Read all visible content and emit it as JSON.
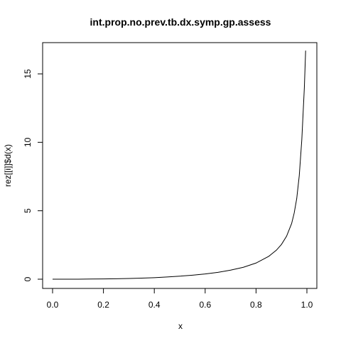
{
  "chart_data": {
    "type": "line",
    "title": "int.prop.no.prev.tb.dx.symp.gp.assess",
    "xlabel": "x",
    "ylabel": "rez[[i]]$d(x)",
    "xlim": [
      0,
      1
    ],
    "ylim": [
      0,
      16.8
    ],
    "x_ticks": [
      "0.0",
      "0.2",
      "0.4",
      "0.6",
      "0.8",
      "1.0"
    ],
    "y_ticks": [
      "0",
      "5",
      "10",
      "15"
    ],
    "grid": false,
    "legend": "none",
    "line_color": "#000000",
    "series": [
      {
        "x": [
          0.0,
          0.05,
          0.1,
          0.15,
          0.2,
          0.25,
          0.3,
          0.35,
          0.4,
          0.45,
          0.5,
          0.55,
          0.6,
          0.65,
          0.7,
          0.75,
          0.8,
          0.85,
          0.88,
          0.9,
          0.92,
          0.94,
          0.95,
          0.96,
          0.97,
          0.98,
          0.99,
          0.995
        ],
        "y": [
          0.0,
          0.0,
          0.0,
          0.01,
          0.02,
          0.03,
          0.05,
          0.08,
          0.11,
          0.16,
          0.22,
          0.29,
          0.38,
          0.5,
          0.66,
          0.87,
          1.18,
          1.67,
          2.12,
          2.54,
          3.14,
          4.07,
          4.83,
          5.89,
          7.57,
          10.2,
          14.0,
          16.7
        ]
      }
    ]
  }
}
